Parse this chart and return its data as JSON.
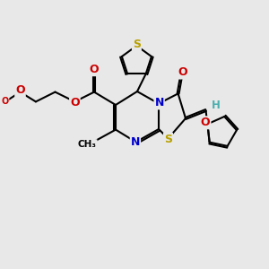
{
  "bg_color": "#e8e8e8",
  "atom_colors": {
    "S": "#b8a000",
    "N": "#0000cc",
    "O": "#cc0000",
    "H": "#4aafaf"
  },
  "lw": 1.5,
  "figsize": [
    3.0,
    3.0
  ],
  "dpi": 100
}
